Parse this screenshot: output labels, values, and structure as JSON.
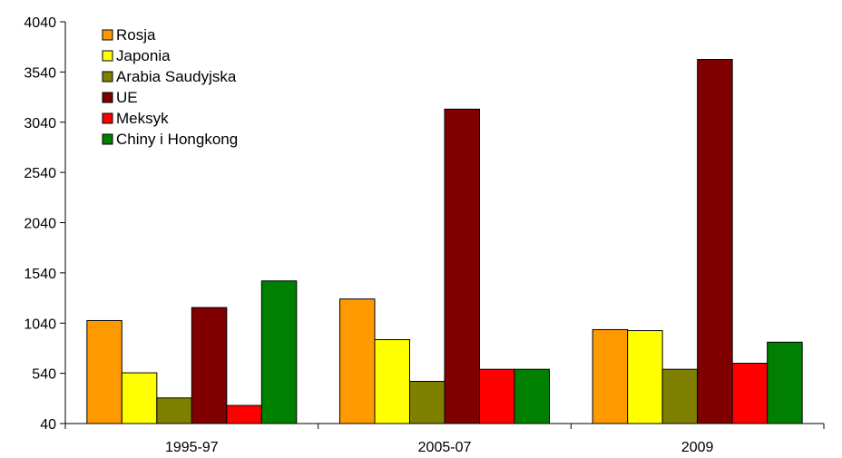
{
  "chart_data": {
    "type": "bar",
    "title": "",
    "xlabel": "",
    "ylabel": "",
    "categories": [
      "1995-97",
      "2005-07",
      "2009"
    ],
    "series": [
      {
        "name": "Rosja",
        "color": "#ff9900",
        "values": [
          1065,
          1280,
          975
        ]
      },
      {
        "name": "Japonia",
        "color": "#ffff00",
        "values": [
          545,
          875,
          965
        ]
      },
      {
        "name": "Arabia Saudyjska",
        "color": "#808000",
        "values": [
          295,
          460,
          580
        ]
      },
      {
        "name": "UE",
        "color": "#800000",
        "values": [
          1195,
          3170,
          3665
        ]
      },
      {
        "name": "Meksyk",
        "color": "#ff0000",
        "values": [
          220,
          580,
          640
        ]
      },
      {
        "name": "Chiny i Hongkong",
        "color": "#008000",
        "values": [
          1460,
          580,
          850
        ]
      }
    ],
    "ylim": [
      40,
      4040
    ],
    "yticks": [
      40,
      540,
      1040,
      1540,
      2040,
      2540,
      3040,
      3540,
      4040
    ],
    "grid": false,
    "legend": "top-left"
  }
}
